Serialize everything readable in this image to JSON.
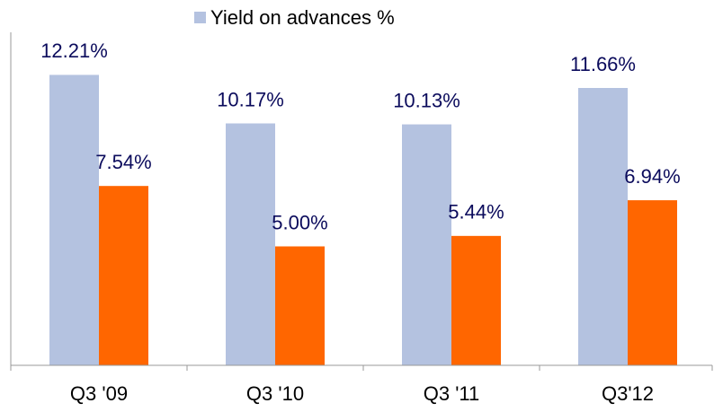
{
  "chart_data": {
    "type": "bar",
    "categories": [
      "Q3 '09",
      "Q3 '10",
      "Q3 '11",
      "Q3'12"
    ],
    "series": [
      {
        "name": "Yield on advances %",
        "color": "#b4c2e0",
        "values": [
          12.21,
          10.17,
          10.13,
          11.66
        ],
        "value_labels": [
          "12.21%",
          "10.17%",
          "10.13%",
          "11.66%"
        ]
      },
      {
        "color": "#ff6600",
        "values": [
          7.54,
          5.0,
          5.44,
          6.94
        ],
        "value_labels": [
          "7.54%",
          "5.00%",
          "5.44%",
          "6.94%"
        ]
      }
    ],
    "ylim": [
      0,
      14
    ]
  }
}
